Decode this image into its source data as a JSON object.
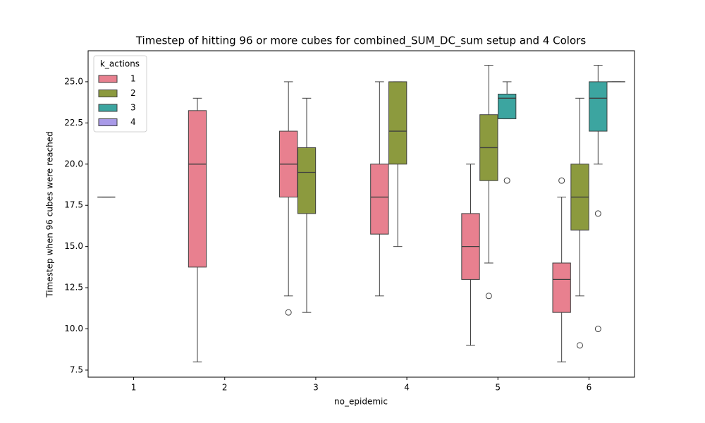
{
  "chart_data": {
    "type": "box",
    "title": "Timestep of hitting 96 or more cubes for combined_SUM_DC_sum setup and 4 Colors",
    "x_label": "no_epidemic",
    "y_label": "Timestep when 96 cubes were reached",
    "categories": [
      "1",
      "2",
      "3",
      "4",
      "5",
      "6"
    ],
    "ylim": [
      7.07,
      26.88
    ],
    "yticks": [
      7.5,
      {
        "value": 10,
        "label": "10.0"
      },
      12.5,
      {
        "value": 15,
        "label": "15.0"
      },
      17.5,
      {
        "value": 20,
        "label": "20.0"
      },
      22.5,
      {
        "value": 25,
        "label": "25.0"
      }
    ],
    "legend_title": "k_actions",
    "legend_position": "upper-left",
    "series": [
      {
        "name": "1",
        "color": "#e8808f",
        "boxes": [
          {
            "whislo": 18,
            "q1": 18,
            "med": 18,
            "q3": 18,
            "whishi": 18,
            "fliers": []
          },
          {
            "whislo": 8,
            "q1": 13.75,
            "med": 20,
            "q3": 23.25,
            "whishi": 24,
            "fliers": []
          },
          {
            "whislo": 12,
            "q1": 18,
            "med": 20,
            "q3": 22,
            "whishi": 25,
            "fliers": [
              11
            ]
          },
          {
            "whislo": 12,
            "q1": 15.75,
            "med": 18,
            "q3": 20,
            "whishi": 25,
            "fliers": []
          },
          {
            "whislo": 9,
            "q1": 13,
            "med": 15,
            "q3": 17,
            "whishi": 20,
            "fliers": []
          },
          {
            "whislo": 8,
            "q1": 11,
            "med": 13,
            "q3": 14,
            "whishi": 18,
            "fliers": [
              19
            ]
          }
        ]
      },
      {
        "name": "2",
        "color": "#8c9a3e",
        "boxes": [
          null,
          null,
          {
            "whislo": 11,
            "q1": 17,
            "med": 19.5,
            "q3": 21,
            "whishi": 24,
            "fliers": []
          },
          {
            "whislo": 15,
            "q1": 20,
            "med": 22,
            "q3": 25,
            "whishi": 25,
            "fliers": []
          },
          {
            "whislo": 14,
            "q1": 19,
            "med": 21,
            "q3": 23,
            "whishi": 26,
            "fliers": [
              12
            ]
          },
          {
            "whislo": 12,
            "q1": 16,
            "med": 18,
            "q3": 20,
            "whishi": 24,
            "fliers": [
              9
            ]
          }
        ]
      },
      {
        "name": "3",
        "color": "#3ca5a0",
        "boxes": [
          null,
          null,
          null,
          null,
          {
            "whislo": 22.75,
            "q1": 22.75,
            "med": 24,
            "q3": 24.25,
            "whishi": 25,
            "fliers": [
              19
            ]
          },
          {
            "whislo": 20,
            "q1": 22,
            "med": 24,
            "q3": 25,
            "whishi": 26,
            "fliers": [
              17,
              10
            ]
          }
        ]
      },
      {
        "name": "4",
        "color": "#a99ae8",
        "boxes": [
          null,
          null,
          null,
          null,
          null,
          {
            "whislo": 25,
            "q1": 25,
            "med": 25,
            "q3": 25,
            "whishi": 25,
            "fliers": []
          }
        ]
      }
    ]
  }
}
